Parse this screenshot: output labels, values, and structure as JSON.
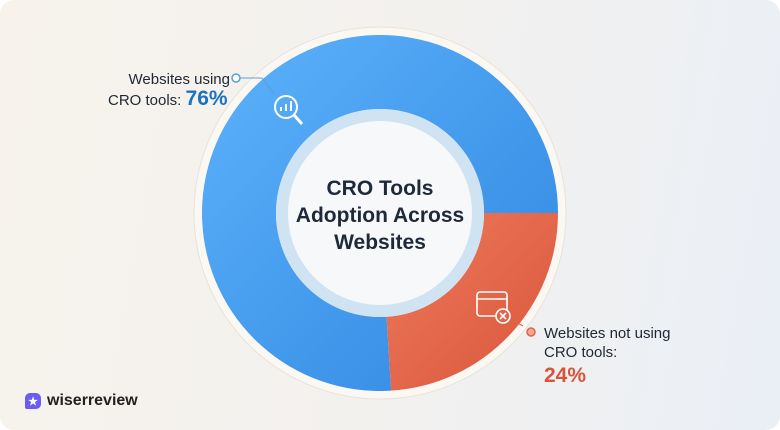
{
  "chart_data": {
    "type": "pie",
    "title": "CRO Tools Adoption Across Websites",
    "slices": [
      {
        "label": "Websites using CRO tools:",
        "value": 76,
        "display": "76%",
        "color": "#3a97ec",
        "icon": "analytics-magnifier-icon"
      },
      {
        "label": "Websites not using CRO tools:",
        "value": 24,
        "display": "24%",
        "color": "#e0654a",
        "icon": "browser-window-x-icon"
      }
    ]
  },
  "labels": {
    "using_line1": "Websites using",
    "using_line2": "CRO tools:",
    "not_line1": "Websites not using",
    "not_line2": "CRO tools:"
  },
  "brand": {
    "name": "wiserreview",
    "accent": "#6a5cf0"
  }
}
